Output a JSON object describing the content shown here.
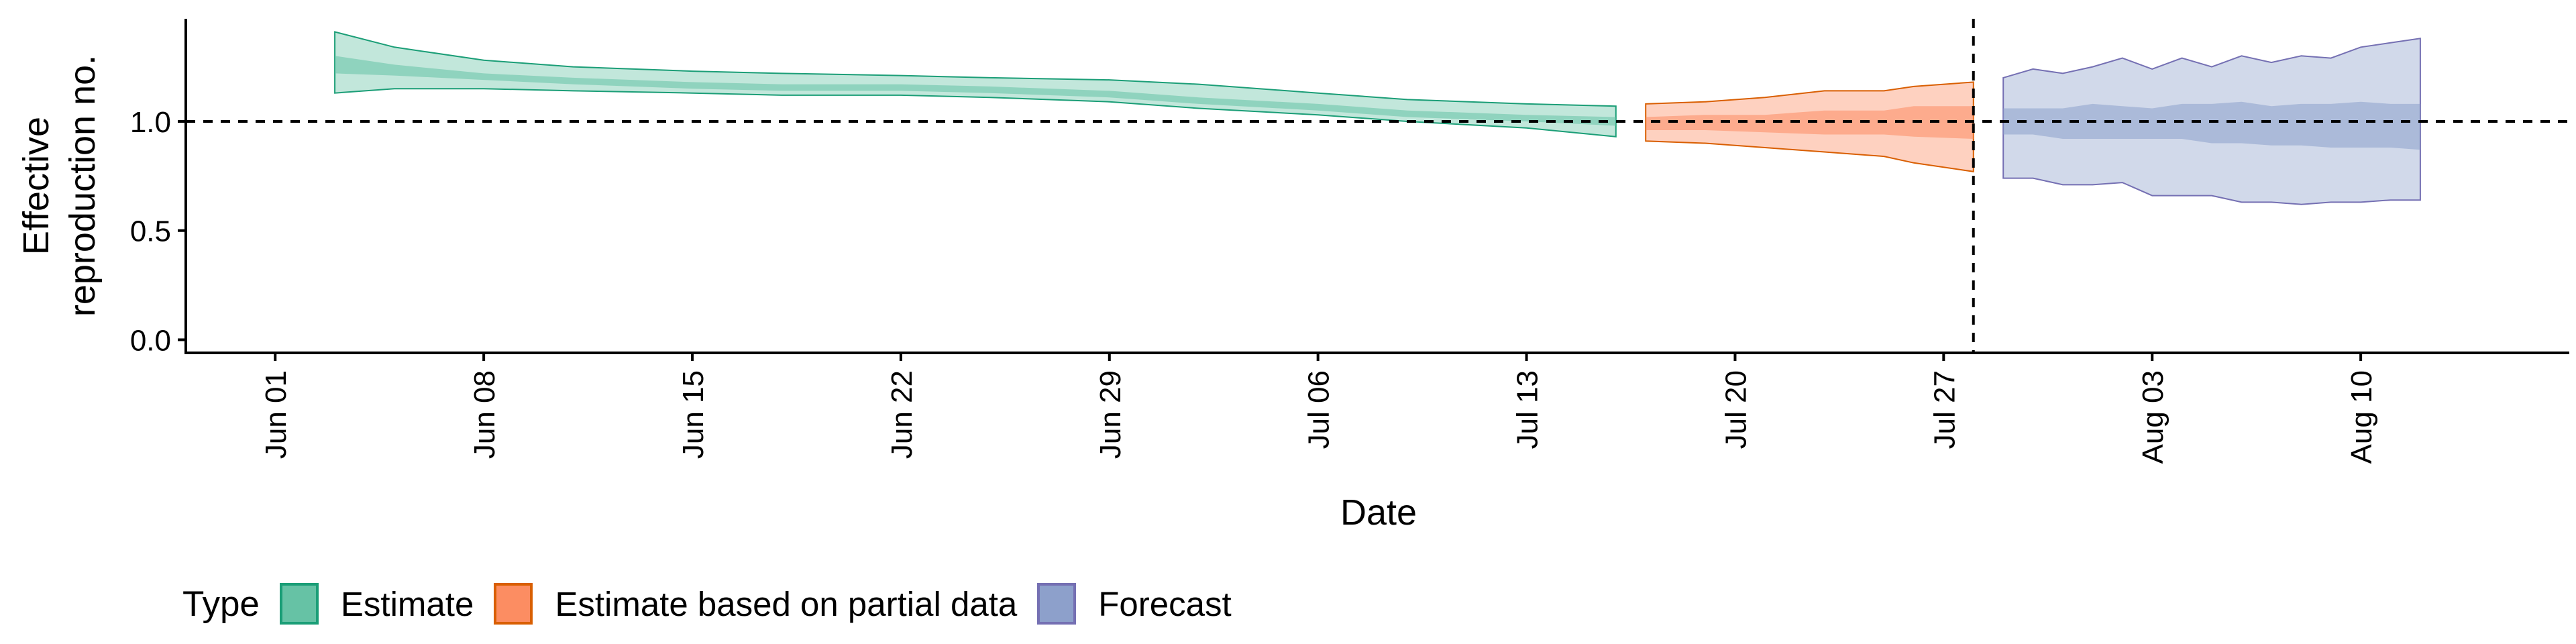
{
  "chart_data": {
    "type": "area",
    "xlabel": "Date",
    "ylabel_lines": [
      "Effective",
      "reproduction no."
    ],
    "x_domain": [
      "2020-05-29",
      "2020-08-17"
    ],
    "y_domain": [
      -0.06,
      1.47
    ],
    "x_ticks": [
      {
        "date": "2020-06-01",
        "label": "Jun 01"
      },
      {
        "date": "2020-06-08",
        "label": "Jun 08"
      },
      {
        "date": "2020-06-15",
        "label": "Jun 15"
      },
      {
        "date": "2020-06-22",
        "label": "Jun 22"
      },
      {
        "date": "2020-06-29",
        "label": "Jun 29"
      },
      {
        "date": "2020-07-06",
        "label": "Jul 06"
      },
      {
        "date": "2020-07-13",
        "label": "Jul 13"
      },
      {
        "date": "2020-07-20",
        "label": "Jul 20"
      },
      {
        "date": "2020-07-27",
        "label": "Jul 27"
      },
      {
        "date": "2020-08-03",
        "label": "Aug 03"
      },
      {
        "date": "2020-08-10",
        "label": "Aug 10"
      }
    ],
    "y_ticks": [
      {
        "value": 0.0,
        "label": "0.0"
      },
      {
        "value": 0.5,
        "label": "0.5"
      },
      {
        "value": 1.0,
        "label": "1.0"
      }
    ],
    "reference_hline": 1.0,
    "reference_vline_date": "2020-07-28",
    "grid": false,
    "legend_position": "bottom",
    "legend_title": "Type",
    "series": [
      {
        "name": "Estimate",
        "fill": "#66C2A5",
        "stroke": "#1B9E77",
        "dates": [
          "2020-06-03",
          "2020-06-05",
          "2020-06-08",
          "2020-06-11",
          "2020-06-15",
          "2020-06-18",
          "2020-06-22",
          "2020-06-25",
          "2020-06-29",
          "2020-07-02",
          "2020-07-06",
          "2020-07-09",
          "2020-07-13",
          "2020-07-16"
        ],
        "lower90": [
          1.13,
          1.15,
          1.15,
          1.14,
          1.13,
          1.12,
          1.12,
          1.11,
          1.09,
          1.06,
          1.03,
          1.0,
          0.97,
          0.93
        ],
        "upper90": [
          1.41,
          1.34,
          1.28,
          1.25,
          1.23,
          1.22,
          1.21,
          1.2,
          1.19,
          1.17,
          1.13,
          1.1,
          1.08,
          1.07
        ],
        "lower50": [
          1.22,
          1.21,
          1.19,
          1.17,
          1.15,
          1.14,
          1.14,
          1.13,
          1.11,
          1.08,
          1.05,
          1.02,
          1.0,
          0.98
        ],
        "upper50": [
          1.3,
          1.26,
          1.22,
          1.2,
          1.18,
          1.17,
          1.17,
          1.16,
          1.14,
          1.11,
          1.08,
          1.05,
          1.03,
          1.02
        ]
      },
      {
        "name": "Estimate based on partial data",
        "fill": "#FC8D62",
        "stroke": "#D95F02",
        "dates": [
          "2020-07-17",
          "2020-07-19",
          "2020-07-21",
          "2020-07-23",
          "2020-07-25",
          "2020-07-26",
          "2020-07-28"
        ],
        "lower90": [
          0.91,
          0.9,
          0.88,
          0.86,
          0.84,
          0.81,
          0.77
        ],
        "upper90": [
          1.08,
          1.09,
          1.11,
          1.14,
          1.14,
          1.16,
          1.18
        ],
        "lower50": [
          0.96,
          0.96,
          0.95,
          0.94,
          0.94,
          0.93,
          0.92
        ],
        "upper50": [
          1.02,
          1.03,
          1.03,
          1.05,
          1.05,
          1.07,
          1.07
        ]
      },
      {
        "name": "Forecast",
        "fill": "#8DA0CB",
        "stroke": "#7570B3",
        "dates": [
          "2020-07-29",
          "2020-07-30",
          "2020-07-31",
          "2020-08-01",
          "2020-08-02",
          "2020-08-03",
          "2020-08-04",
          "2020-08-05",
          "2020-08-06",
          "2020-08-07",
          "2020-08-08",
          "2020-08-09",
          "2020-08-10",
          "2020-08-11",
          "2020-08-12"
        ],
        "lower90": [
          0.74,
          0.74,
          0.71,
          0.71,
          0.72,
          0.66,
          0.66,
          0.66,
          0.63,
          0.63,
          0.62,
          0.63,
          0.63,
          0.64,
          0.64
        ],
        "upper90": [
          1.2,
          1.24,
          1.22,
          1.25,
          1.29,
          1.24,
          1.29,
          1.25,
          1.3,
          1.27,
          1.3,
          1.29,
          1.34,
          1.36,
          1.38
        ],
        "lower50": [
          0.94,
          0.94,
          0.92,
          0.92,
          0.92,
          0.92,
          0.92,
          0.9,
          0.9,
          0.89,
          0.89,
          0.88,
          0.88,
          0.88,
          0.87
        ],
        "upper50": [
          1.06,
          1.06,
          1.06,
          1.08,
          1.07,
          1.06,
          1.08,
          1.08,
          1.09,
          1.07,
          1.08,
          1.08,
          1.09,
          1.08,
          1.08
        ]
      }
    ]
  },
  "legend": {
    "title": "Type",
    "items": [
      {
        "label": "Estimate",
        "fill": "#66C2A5",
        "stroke": "#1B9E77"
      },
      {
        "label": "Estimate based on partial data",
        "fill": "#FC8D62",
        "stroke": "#D95F02"
      },
      {
        "label": "Forecast",
        "fill": "#8DA0CB",
        "stroke": "#7570B3"
      }
    ]
  }
}
